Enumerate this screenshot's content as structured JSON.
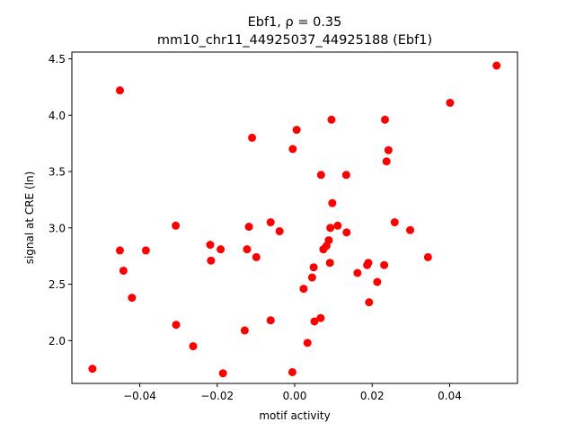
{
  "chart_data": {
    "type": "scatter",
    "title_line1": "Ebf1, ρ = 0.35",
    "title_line2": "mm10_chr11_44925037_44925188 (Ebf1)",
    "xlabel": "motif activity",
    "ylabel": "signal at CRE (ln)",
    "xlim": [
      -0.0575,
      0.0575
    ],
    "ylim": [
      1.62,
      4.56
    ],
    "xticks": [
      -0.04,
      -0.02,
      0.0,
      0.02,
      0.04
    ],
    "xtick_labels": [
      "−0.04",
      "−0.02",
      "0.00",
      "0.02",
      "0.04"
    ],
    "yticks": [
      2.0,
      2.5,
      3.0,
      3.5,
      4.0,
      4.5
    ],
    "ytick_labels": [
      "2.0",
      "2.5",
      "3.0",
      "3.5",
      "4.0",
      "4.5"
    ],
    "grid": false,
    "marker_color": "#ff0000",
    "points": [
      {
        "x": -0.0522,
        "y": 1.75
      },
      {
        "x": -0.0451,
        "y": 4.22
      },
      {
        "x": -0.0451,
        "y": 2.8
      },
      {
        "x": -0.0442,
        "y": 2.62
      },
      {
        "x": -0.042,
        "y": 2.38
      },
      {
        "x": -0.0384,
        "y": 2.8
      },
      {
        "x": -0.0307,
        "y": 3.02
      },
      {
        "x": -0.0306,
        "y": 2.14
      },
      {
        "x": -0.0262,
        "y": 1.95
      },
      {
        "x": -0.0218,
        "y": 2.85
      },
      {
        "x": -0.0216,
        "y": 2.71
      },
      {
        "x": -0.0191,
        "y": 2.81
      },
      {
        "x": -0.0185,
        "y": 1.71
      },
      {
        "x": -0.0129,
        "y": 2.09
      },
      {
        "x": -0.0123,
        "y": 2.81
      },
      {
        "x": -0.0118,
        "y": 3.01
      },
      {
        "x": -0.011,
        "y": 3.8
      },
      {
        "x": -0.0099,
        "y": 2.74
      },
      {
        "x": -0.0062,
        "y": 3.05
      },
      {
        "x": -0.0062,
        "y": 2.18
      },
      {
        "x": -0.0039,
        "y": 2.97
      },
      {
        "x": -0.0006,
        "y": 1.72
      },
      {
        "x": -0.0005,
        "y": 3.7
      },
      {
        "x": 0.0005,
        "y": 3.87
      },
      {
        "x": 0.0023,
        "y": 2.46
      },
      {
        "x": 0.0033,
        "y": 1.98
      },
      {
        "x": 0.0045,
        "y": 2.56
      },
      {
        "x": 0.0049,
        "y": 2.65
      },
      {
        "x": 0.0051,
        "y": 2.17
      },
      {
        "x": 0.0067,
        "y": 2.2
      },
      {
        "x": 0.0068,
        "y": 3.47
      },
      {
        "x": 0.0074,
        "y": 2.81
      },
      {
        "x": 0.0082,
        "y": 2.84
      },
      {
        "x": 0.0088,
        "y": 2.89
      },
      {
        "x": 0.0091,
        "y": 2.69
      },
      {
        "x": 0.0092,
        "y": 3.0
      },
      {
        "x": 0.0095,
        "y": 3.96
      },
      {
        "x": 0.0097,
        "y": 3.22
      },
      {
        "x": 0.0111,
        "y": 3.02
      },
      {
        "x": 0.0133,
        "y": 3.47
      },
      {
        "x": 0.0134,
        "y": 2.96
      },
      {
        "x": 0.0162,
        "y": 2.6
      },
      {
        "x": 0.0187,
        "y": 2.67
      },
      {
        "x": 0.019,
        "y": 2.69
      },
      {
        "x": 0.0192,
        "y": 2.34
      },
      {
        "x": 0.0213,
        "y": 2.52
      },
      {
        "x": 0.0231,
        "y": 2.67
      },
      {
        "x": 0.0233,
        "y": 3.96
      },
      {
        "x": 0.0237,
        "y": 3.59
      },
      {
        "x": 0.0242,
        "y": 3.69
      },
      {
        "x": 0.0258,
        "y": 3.05
      },
      {
        "x": 0.0298,
        "y": 2.98
      },
      {
        "x": 0.0344,
        "y": 2.74
      },
      {
        "x": 0.0401,
        "y": 4.11
      },
      {
        "x": 0.0521,
        "y": 4.44
      }
    ]
  }
}
